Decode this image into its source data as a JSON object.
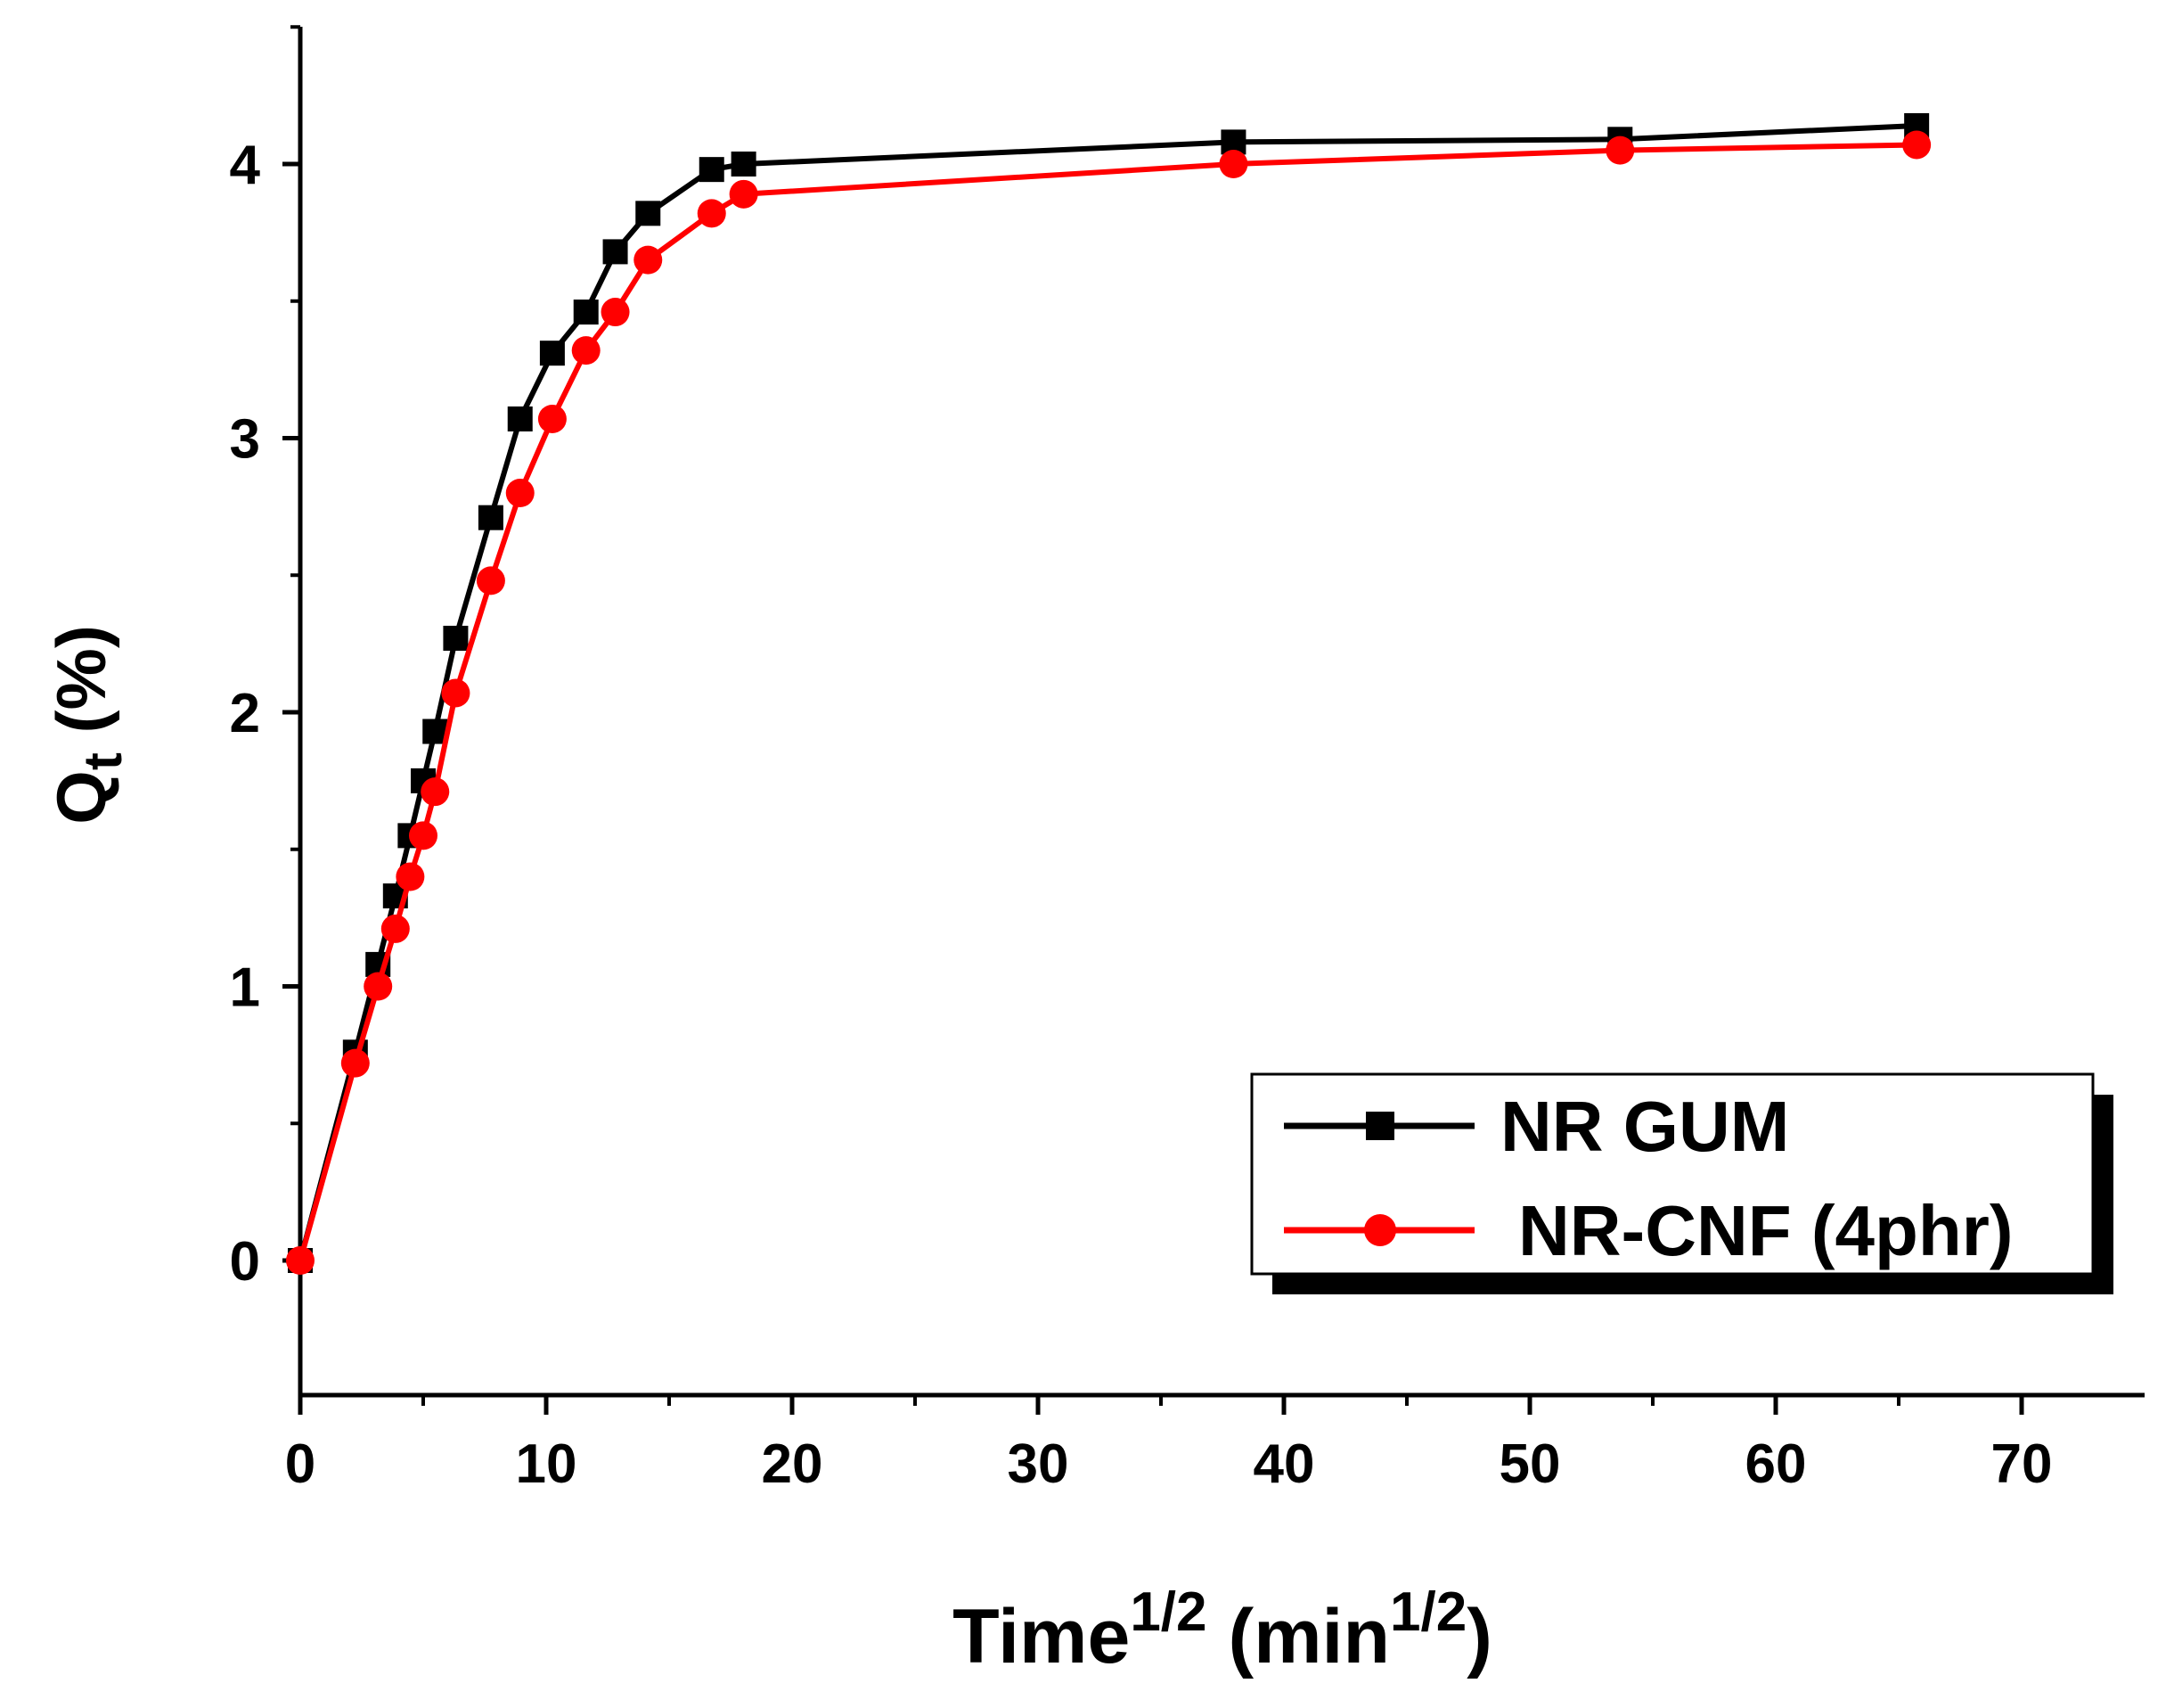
{
  "chart_data": {
    "type": "line",
    "title": "",
    "xlabel": {
      "base": "Time",
      "base_sup": "1/2",
      "unit_prefix": "(min",
      "unit_sup": "1/2",
      "unit_suffix": ")"
    },
    "ylabel": {
      "base": "Q",
      "sub": "t",
      "unit": "(%)"
    },
    "xlim": [
      0,
      75
    ],
    "ylim": [
      -0.5,
      4.5
    ],
    "xticks": [
      0,
      10,
      20,
      30,
      40,
      50,
      60,
      70
    ],
    "xtick_labels": [
      "0",
      "10",
      "20",
      "30",
      "40",
      "50",
      "60",
      "70"
    ],
    "yticks": [
      0,
      1,
      2,
      3,
      4
    ],
    "ytick_labels": [
      "0",
      "1",
      "2",
      "3",
      "4"
    ],
    "grid": false,
    "legend_position": "bottom-right",
    "series": [
      {
        "name": "NR GUM",
        "color": "#000000",
        "marker": "square",
        "x": [
          0,
          2.24,
          3.16,
          3.87,
          4.47,
          5.0,
          5.48,
          6.32,
          7.75,
          8.94,
          10.25,
          11.62,
          12.81,
          14.14,
          16.73,
          18.03,
          37.95,
          53.67,
          65.73
        ],
        "y": [
          0,
          0.76,
          1.08,
          1.33,
          1.55,
          1.75,
          1.93,
          2.27,
          2.71,
          3.07,
          3.31,
          3.46,
          3.68,
          3.82,
          3.98,
          4.0,
          4.08,
          4.09,
          4.14
        ]
      },
      {
        "name": "NR-CNF (4phr)",
        "color": "#ff0000",
        "marker": "circle",
        "x": [
          0,
          2.24,
          3.16,
          3.87,
          4.47,
          5.0,
          5.48,
          6.32,
          7.75,
          8.94,
          10.25,
          11.62,
          12.81,
          14.14,
          16.73,
          18.03,
          37.95,
          53.67,
          65.73
        ],
        "y": [
          0,
          0.72,
          1.0,
          1.21,
          1.4,
          1.55,
          1.71,
          2.07,
          2.48,
          2.8,
          3.07,
          3.32,
          3.46,
          3.65,
          3.82,
          3.89,
          4.0,
          4.05,
          4.07
        ]
      }
    ]
  }
}
